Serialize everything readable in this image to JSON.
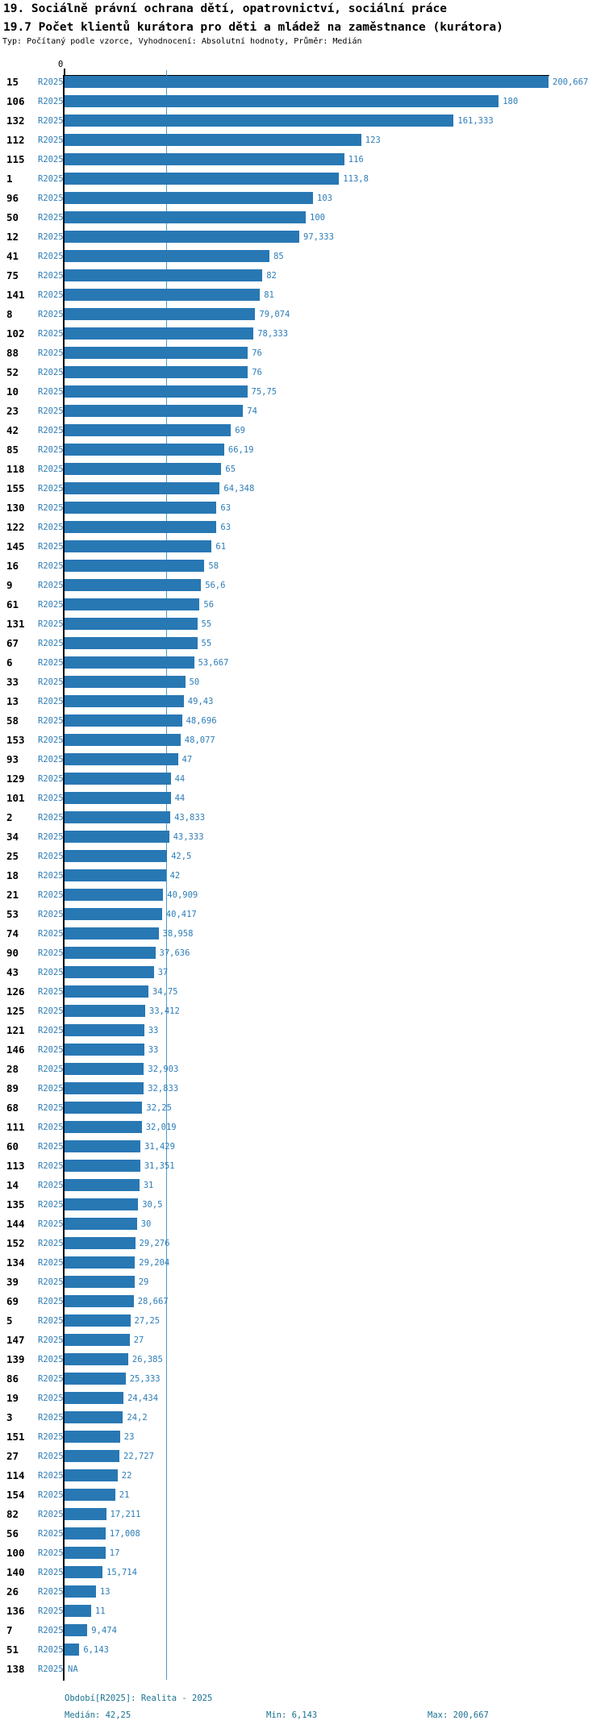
{
  "header": {
    "title_line1": "19. Sociálně právní ochrana dětí, opatrovnictví, sociální práce",
    "title_line2": "19.7 Počet klientů kurátora pro děti a mládež na zaměstnance (kurátora)",
    "subtitle": "Typ: Počítaný podle vzorce, Vyhodnocení: Absolutní hodnoty, Průměr: Medián"
  },
  "chart_data": {
    "type": "bar",
    "orientation": "horizontal",
    "period_label": "R2025",
    "axis": {
      "zero_label": "0",
      "xlim": [
        0,
        200.667
      ],
      "median_value": 42.25,
      "grid": false
    },
    "colors": {
      "bar": "#2878b4",
      "median_line": "#4d9ac9",
      "value_text": "#2e7db8",
      "footer_text": "#1b7291",
      "axis": "#000000"
    },
    "rows": [
      {
        "label": "15",
        "value": 200.667,
        "value_text": "200,667"
      },
      {
        "label": "106",
        "value": 180,
        "value_text": "180"
      },
      {
        "label": "132",
        "value": 161.333,
        "value_text": "161,333"
      },
      {
        "label": "112",
        "value": 123,
        "value_text": "123"
      },
      {
        "label": "115",
        "value": 116,
        "value_text": "116"
      },
      {
        "label": "1",
        "value": 113.8,
        "value_text": "113,8"
      },
      {
        "label": "96",
        "value": 103,
        "value_text": "103"
      },
      {
        "label": "50",
        "value": 100,
        "value_text": "100"
      },
      {
        "label": "12",
        "value": 97.333,
        "value_text": "97,333"
      },
      {
        "label": "41",
        "value": 85,
        "value_text": "85"
      },
      {
        "label": "75",
        "value": 82,
        "value_text": "82"
      },
      {
        "label": "141",
        "value": 81,
        "value_text": "81"
      },
      {
        "label": "8",
        "value": 79.074,
        "value_text": "79,074"
      },
      {
        "label": "102",
        "value": 78.333,
        "value_text": "78,333"
      },
      {
        "label": "88",
        "value": 76,
        "value_text": "76"
      },
      {
        "label": "52",
        "value": 76,
        "value_text": "76"
      },
      {
        "label": "10",
        "value": 75.75,
        "value_text": "75,75"
      },
      {
        "label": "23",
        "value": 74,
        "value_text": "74"
      },
      {
        "label": "42",
        "value": 69,
        "value_text": "69"
      },
      {
        "label": "85",
        "value": 66.19,
        "value_text": "66,19"
      },
      {
        "label": "118",
        "value": 65,
        "value_text": "65"
      },
      {
        "label": "155",
        "value": 64.348,
        "value_text": "64,348"
      },
      {
        "label": "130",
        "value": 63,
        "value_text": "63"
      },
      {
        "label": "122",
        "value": 63,
        "value_text": "63"
      },
      {
        "label": "145",
        "value": 61,
        "value_text": "61"
      },
      {
        "label": "16",
        "value": 58,
        "value_text": "58"
      },
      {
        "label": "9",
        "value": 56.6,
        "value_text": "56,6"
      },
      {
        "label": "61",
        "value": 56,
        "value_text": "56"
      },
      {
        "label": "131",
        "value": 55,
        "value_text": "55"
      },
      {
        "label": "67",
        "value": 55,
        "value_text": "55"
      },
      {
        "label": "6",
        "value": 53.667,
        "value_text": "53,667"
      },
      {
        "label": "33",
        "value": 50,
        "value_text": "50"
      },
      {
        "label": "13",
        "value": 49.43,
        "value_text": "49,43"
      },
      {
        "label": "58",
        "value": 48.696,
        "value_text": "48,696"
      },
      {
        "label": "153",
        "value": 48.077,
        "value_text": "48,077"
      },
      {
        "label": "93",
        "value": 47,
        "value_text": "47"
      },
      {
        "label": "129",
        "value": 44,
        "value_text": "44"
      },
      {
        "label": "101",
        "value": 44,
        "value_text": "44"
      },
      {
        "label": "2",
        "value": 43.833,
        "value_text": "43,833"
      },
      {
        "label": "34",
        "value": 43.333,
        "value_text": "43,333"
      },
      {
        "label": "25",
        "value": 42.5,
        "value_text": "42,5"
      },
      {
        "label": "18",
        "value": 42,
        "value_text": "42"
      },
      {
        "label": "21",
        "value": 40.909,
        "value_text": "40,909"
      },
      {
        "label": "53",
        "value": 40.417,
        "value_text": "40,417"
      },
      {
        "label": "74",
        "value": 38.958,
        "value_text": "38,958"
      },
      {
        "label": "90",
        "value": 37.636,
        "value_text": "37,636"
      },
      {
        "label": "43",
        "value": 37,
        "value_text": "37"
      },
      {
        "label": "126",
        "value": 34.75,
        "value_text": "34,75"
      },
      {
        "label": "125",
        "value": 33.412,
        "value_text": "33,412"
      },
      {
        "label": "121",
        "value": 33,
        "value_text": "33"
      },
      {
        "label": "146",
        "value": 33,
        "value_text": "33"
      },
      {
        "label": "28",
        "value": 32.903,
        "value_text": "32,903"
      },
      {
        "label": "89",
        "value": 32.833,
        "value_text": "32,833"
      },
      {
        "label": "68",
        "value": 32.25,
        "value_text": "32,25"
      },
      {
        "label": "111",
        "value": 32.019,
        "value_text": "32,019"
      },
      {
        "label": "60",
        "value": 31.429,
        "value_text": "31,429"
      },
      {
        "label": "113",
        "value": 31.351,
        "value_text": "31,351"
      },
      {
        "label": "14",
        "value": 31,
        "value_text": "31"
      },
      {
        "label": "135",
        "value": 30.5,
        "value_text": "30,5"
      },
      {
        "label": "144",
        "value": 30,
        "value_text": "30"
      },
      {
        "label": "152",
        "value": 29.276,
        "value_text": "29,276"
      },
      {
        "label": "134",
        "value": 29.204,
        "value_text": "29,204"
      },
      {
        "label": "39",
        "value": 29,
        "value_text": "29"
      },
      {
        "label": "69",
        "value": 28.667,
        "value_text": "28,667"
      },
      {
        "label": "5",
        "value": 27.25,
        "value_text": "27,25"
      },
      {
        "label": "147",
        "value": 27,
        "value_text": "27"
      },
      {
        "label": "139",
        "value": 26.385,
        "value_text": "26,385"
      },
      {
        "label": "86",
        "value": 25.333,
        "value_text": "25,333"
      },
      {
        "label": "19",
        "value": 24.434,
        "value_text": "24,434"
      },
      {
        "label": "3",
        "value": 24.2,
        "value_text": "24,2"
      },
      {
        "label": "151",
        "value": 23,
        "value_text": "23"
      },
      {
        "label": "27",
        "value": 22.727,
        "value_text": "22,727"
      },
      {
        "label": "114",
        "value": 22,
        "value_text": "22"
      },
      {
        "label": "154",
        "value": 21,
        "value_text": "21"
      },
      {
        "label": "82",
        "value": 17.211,
        "value_text": "17,211"
      },
      {
        "label": "56",
        "value": 17.008,
        "value_text": "17,008"
      },
      {
        "label": "100",
        "value": 17,
        "value_text": "17"
      },
      {
        "label": "140",
        "value": 15.714,
        "value_text": "15,714"
      },
      {
        "label": "26",
        "value": 13,
        "value_text": "13"
      },
      {
        "label": "136",
        "value": 11,
        "value_text": "11"
      },
      {
        "label": "7",
        "value": 9.474,
        "value_text": "9,474"
      },
      {
        "label": "51",
        "value": 6.143,
        "value_text": "6,143"
      },
      {
        "label": "138",
        "value": null,
        "value_text": "NA"
      }
    ]
  },
  "footer": {
    "line1": "Období[R2025]: Realita - 2025",
    "median": "Medián: 42,25",
    "min": "Min: 6,143",
    "max": "Max: 200,667"
  }
}
